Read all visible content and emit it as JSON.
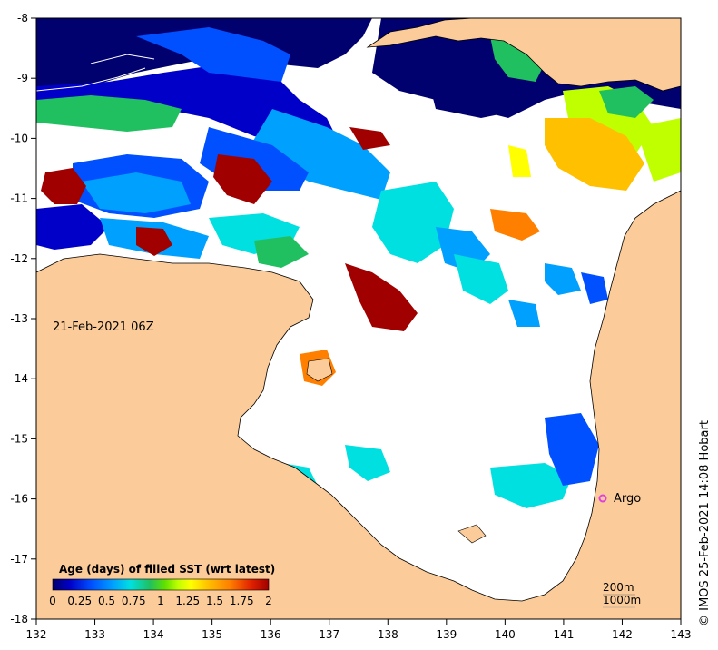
{
  "map": {
    "date_label": "21-Feb-2021 06Z",
    "credit": "© IMOS 25-Feb-2021 14:08 Hobart",
    "argo_label": "Argo",
    "argo_color": "#e040e0",
    "land_color": "#fbcb99",
    "no_data_color": "#ffffff",
    "lon_ticks": [
      "132",
      "133",
      "134",
      "135",
      "136",
      "137",
      "138",
      "139",
      "140",
      "141",
      "142",
      "143"
    ],
    "lat_ticks": [
      "-8",
      "-9",
      "-10",
      "-11",
      "-12",
      "-13",
      "-14",
      "-15",
      "-16",
      "-17",
      "-18"
    ],
    "contours": {
      "c200": "200m",
      "c1000": "1000m"
    },
    "argo_float": {
      "lon": 141.7,
      "lat": -16.0
    },
    "colorbar": {
      "title": "Age (days) of filled SST (wrt latest)",
      "tick_labels": [
        "0",
        "0.25",
        "0.5",
        "0.75",
        "1",
        "1.25",
        "1.5",
        "1.75",
        "2"
      ],
      "colors": [
        "#00006e",
        "#0000c8",
        "#0050ff",
        "#00a0ff",
        "#00e0e0",
        "#20c060",
        "#60e000",
        "#c0ff00",
        "#ffff00",
        "#ffc000",
        "#ff8000",
        "#e02000",
        "#a00000"
      ]
    }
  }
}
